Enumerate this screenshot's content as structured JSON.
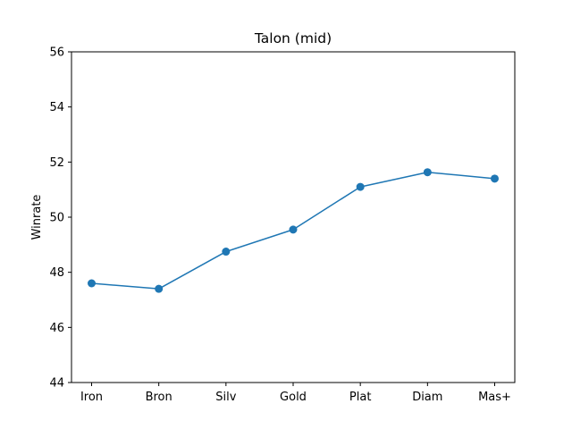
{
  "chart_data": {
    "type": "line",
    "title": "Talon (mid)",
    "xlabel": "",
    "ylabel": "Winrate",
    "categories": [
      "Iron",
      "Bron",
      "Silv",
      "Gold",
      "Plat",
      "Diam",
      "Mas+"
    ],
    "series": [
      {
        "values": [
          47.6,
          47.4,
          48.75,
          49.55,
          51.1,
          51.63,
          51.4
        ],
        "color": "#1f77b4",
        "marker": "circle"
      }
    ],
    "ylim": [
      44,
      56
    ],
    "yticks": [
      44,
      46,
      48,
      50,
      52,
      54,
      56
    ],
    "grid": false,
    "legend": "none"
  }
}
